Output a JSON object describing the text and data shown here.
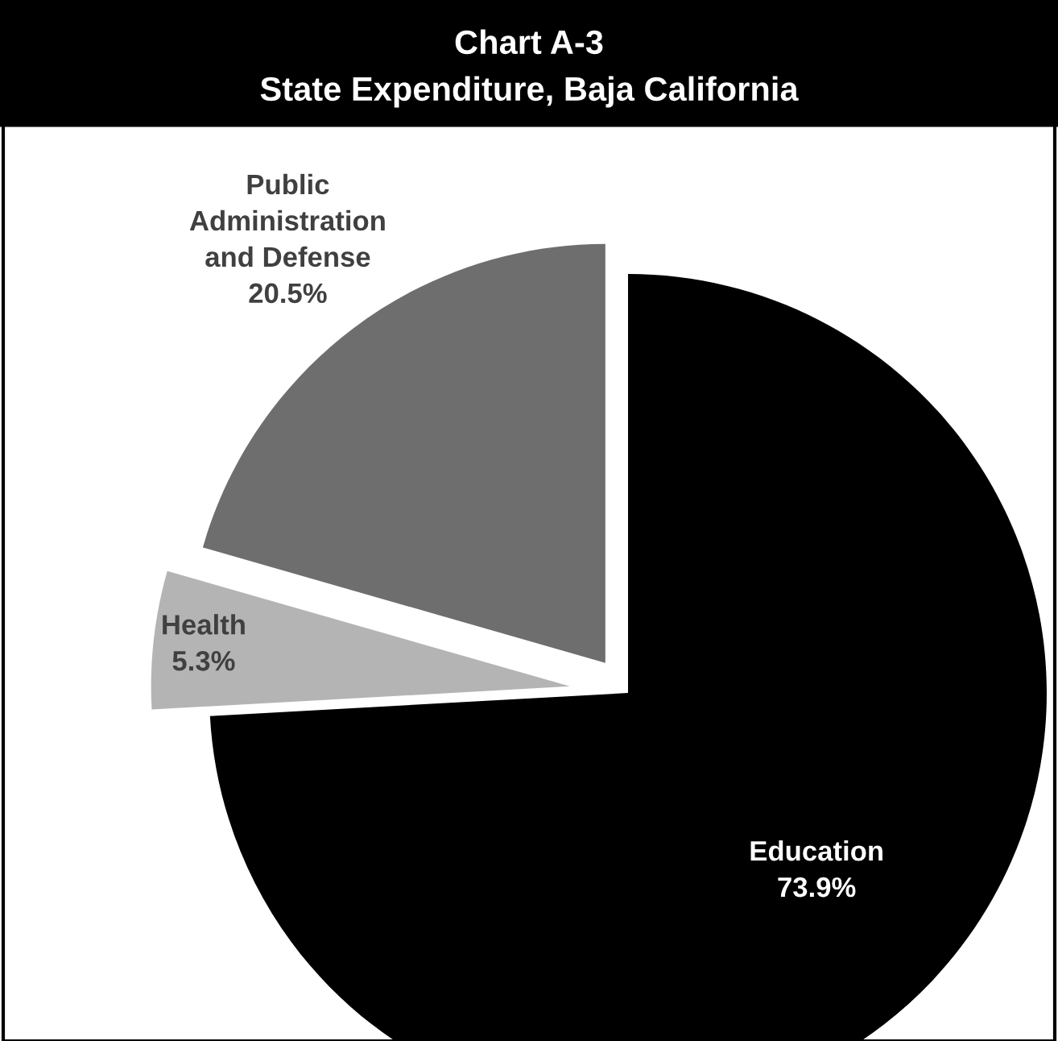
{
  "chart_data": {
    "type": "pie",
    "title": "Chart A-3",
    "subtitle": "State Expenditure, Baja California",
    "categories": [
      "Education",
      "Health",
      "Public Administration and Defense"
    ],
    "values": [
      73.9,
      5.3,
      20.5
    ],
    "value_labels": [
      "73.9%",
      "5.3%",
      "20.5%"
    ],
    "colors": [
      "#000000",
      "#b4b4b4",
      "#6e6e6e"
    ],
    "legend": false
  }
}
